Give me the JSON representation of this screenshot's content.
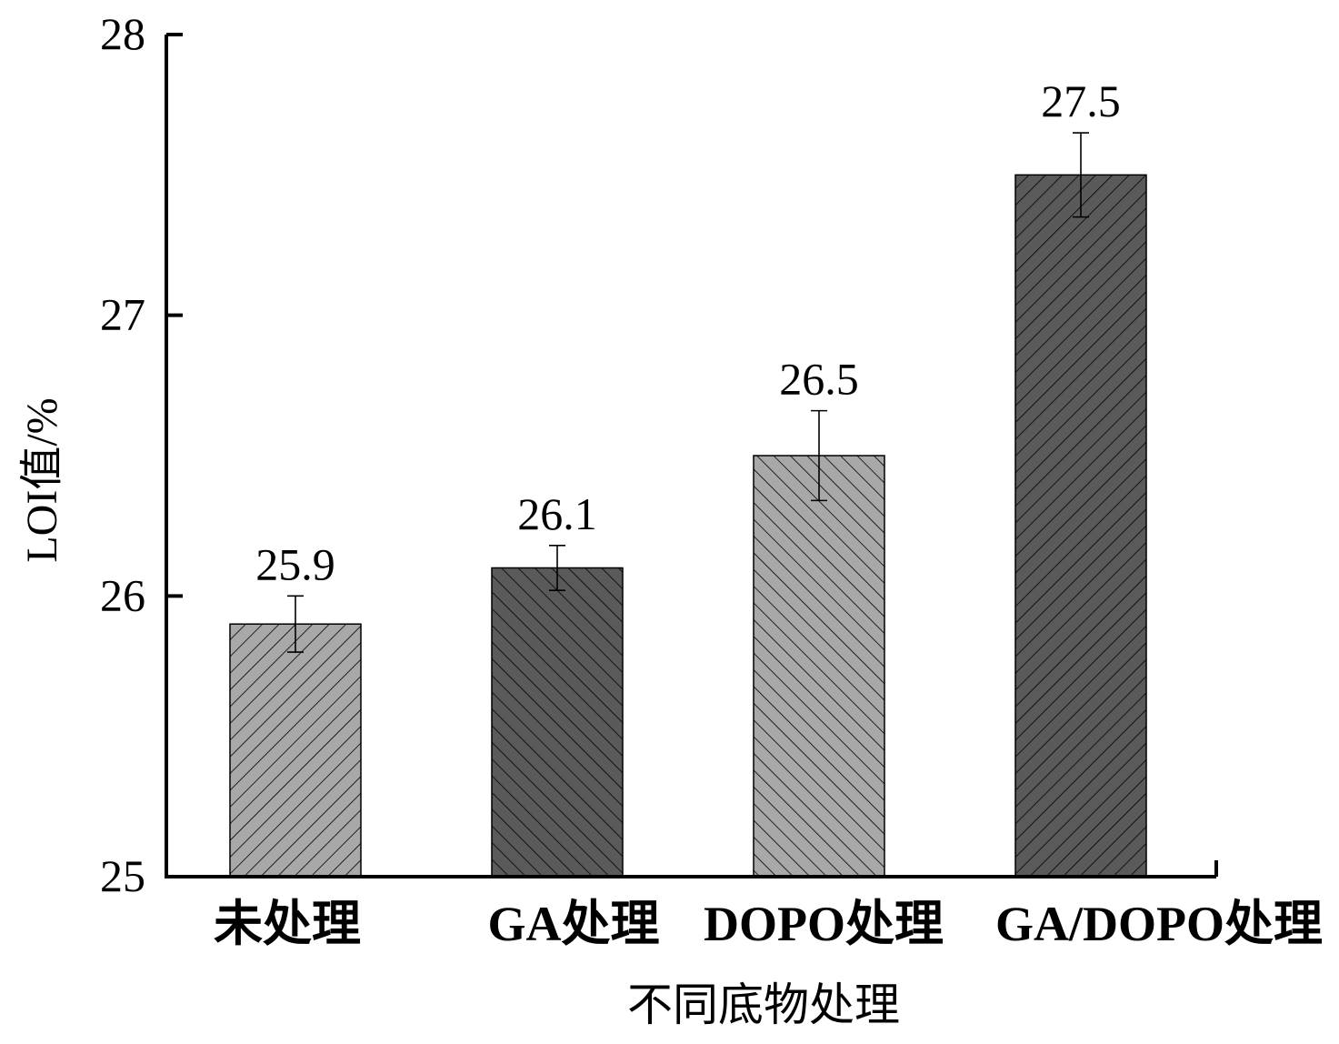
{
  "chart_data": {
    "type": "bar",
    "title": "",
    "xlabel": "不同底物处理",
    "ylabel": "LOI值/%",
    "ylim": [
      25,
      28
    ],
    "yticks": [
      25,
      26,
      27,
      28
    ],
    "categories": [
      "未处理",
      "GA处理",
      "DOPO处理",
      "GA/DOPO处理"
    ],
    "series": [
      {
        "values": [
          25.9,
          26.1,
          26.5,
          27.5
        ],
        "errors": [
          0.1,
          0.08,
          0.16,
          0.15
        ],
        "data_labels": [
          "25.9",
          "26.1",
          "26.5",
          "27.5"
        ]
      }
    ],
    "bar_styles": [
      {
        "fill": "#a8a8a8",
        "hatch": "forward"
      },
      {
        "fill": "#5a5a5a",
        "hatch": "backward"
      },
      {
        "fill": "#a8a8a8",
        "hatch": "backward"
      },
      {
        "fill": "#5a5a5a",
        "hatch": "forward"
      }
    ],
    "grid": false,
    "legend": "none"
  }
}
